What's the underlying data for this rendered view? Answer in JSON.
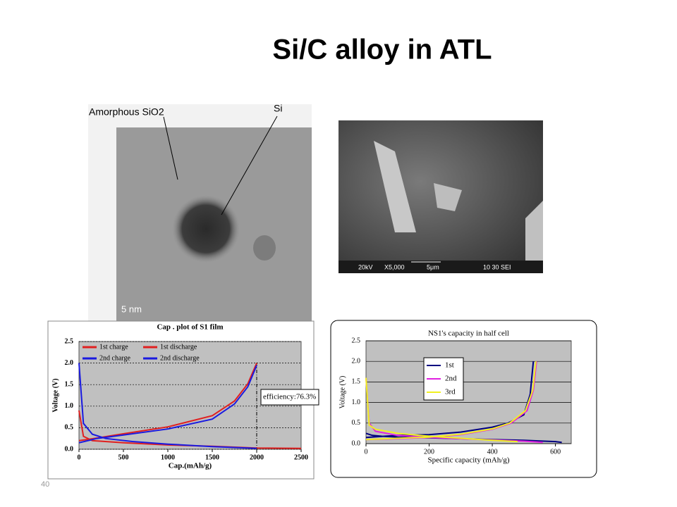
{
  "slide": {
    "title": "Si/C alloy in ATL",
    "page_number": "40"
  },
  "tem_image": {
    "label_amorphous": "Amorphous SiO2",
    "label_si": "Si",
    "scale_bar": "5 nm"
  },
  "sem_image": {
    "info_bar": [
      "20kV",
      "X5,000",
      "5μm",
      "10 30 SEI"
    ]
  },
  "chart_data": [
    {
      "type": "line",
      "title": "Cap . plot of S1 film",
      "x_label": "Cap.(mAh/g)",
      "y_label": "Voltage (V)",
      "xlim": [
        0,
        2500
      ],
      "xticks": [
        0,
        500,
        1000,
        1500,
        2000,
        2500
      ],
      "ylim": [
        0,
        2.5
      ],
      "yticks": [
        {
          "value": 0,
          "label": "0.0"
        },
        0.5,
        {
          "value": 1,
          "label": "1.0"
        },
        1.5,
        {
          "value": 2,
          "label": "2.0"
        },
        2.5
      ],
      "grid": true,
      "legend": "upper left",
      "background": "#c0c0c0",
      "annotation": "efficiency:76.3%",
      "marker_x": 2000,
      "series": [
        {
          "name": "1st charge",
          "color": "#e02020",
          "x": [
            0,
            200,
            500,
            1000,
            1500,
            1750,
            1900,
            2000
          ],
          "values": [
            0.2,
            0.26,
            0.36,
            0.52,
            0.78,
            1.12,
            1.52,
            2.0
          ]
        },
        {
          "name": "1st discharge",
          "color": "#e02020",
          "x": [
            0,
            50,
            150,
            500,
            1000,
            1500,
            2000,
            2500
          ],
          "values": [
            0.9,
            0.3,
            0.2,
            0.15,
            0.1,
            0.07,
            0.03,
            0.02
          ]
        },
        {
          "name": "2nd charge",
          "color": "#1a1ae0",
          "x": [
            0,
            200,
            500,
            1000,
            1500,
            1750,
            1900,
            2000
          ],
          "values": [
            0.15,
            0.25,
            0.33,
            0.47,
            0.7,
            1.05,
            1.45,
            1.95
          ]
        },
        {
          "name": "2nd discharge",
          "color": "#1a1ae0",
          "x": [
            0,
            50,
            150,
            300,
            600,
            1000,
            1500,
            2000
          ],
          "values": [
            2.0,
            0.6,
            0.35,
            0.25,
            0.18,
            0.12,
            0.06,
            0.02
          ]
        }
      ]
    },
    {
      "type": "line",
      "title": "NS1's capacity in half cell",
      "x_label": "Specific capacity (mAh/g)",
      "y_label": "Voltage (V)",
      "xlim": [
        0,
        650
      ],
      "xticks": [
        0,
        200,
        400,
        600
      ],
      "ylim": [
        0,
        2.5
      ],
      "yticks": [
        {
          "value": 0,
          "label": "0.0"
        },
        0.5,
        {
          "value": 1,
          "label": "1.0"
        },
        1.5,
        {
          "value": 2,
          "label": "2.0"
        },
        2.5
      ],
      "grid": true,
      "legend": "upper center",
      "background": "#c0c0c0",
      "series": [
        {
          "name": "1st",
          "color": "#000080",
          "x": [
            0,
            20,
            50,
            100,
            200,
            300,
            400,
            500,
            600,
            620,
            null,
            0,
            100,
            200,
            300,
            400,
            450,
            500,
            520,
            530
          ],
          "values": [
            0.25,
            0.2,
            0.18,
            0.16,
            0.14,
            0.12,
            0.1,
            0.08,
            0.05,
            0.03,
            null,
            0.15,
            0.2,
            0.22,
            0.28,
            0.4,
            0.5,
            0.7,
            1.2,
            2.0
          ]
        },
        {
          "name": "2nd",
          "color": "#e020e0",
          "x": [
            0,
            10,
            30,
            100,
            200,
            300,
            400,
            500,
            560,
            null,
            0,
            100,
            200,
            300,
            400,
            460,
            510,
            530,
            540
          ],
          "values": [
            1.6,
            0.5,
            0.3,
            0.2,
            0.15,
            0.12,
            0.09,
            0.06,
            0.03,
            null,
            0.1,
            0.12,
            0.15,
            0.22,
            0.35,
            0.5,
            0.8,
            1.3,
            2.0
          ]
        },
        {
          "name": "3rd",
          "color": "#f0f020",
          "x": [
            0,
            10,
            30,
            100,
            200,
            300,
            400,
            480,
            null,
            0,
            100,
            200,
            300,
            400,
            455,
            505,
            528,
            538
          ],
          "values": [
            1.6,
            0.45,
            0.35,
            0.25,
            0.18,
            0.13,
            0.08,
            0.05,
            null,
            0.1,
            0.13,
            0.16,
            0.23,
            0.36,
            0.5,
            0.8,
            1.3,
            2.0
          ]
        }
      ]
    }
  ]
}
